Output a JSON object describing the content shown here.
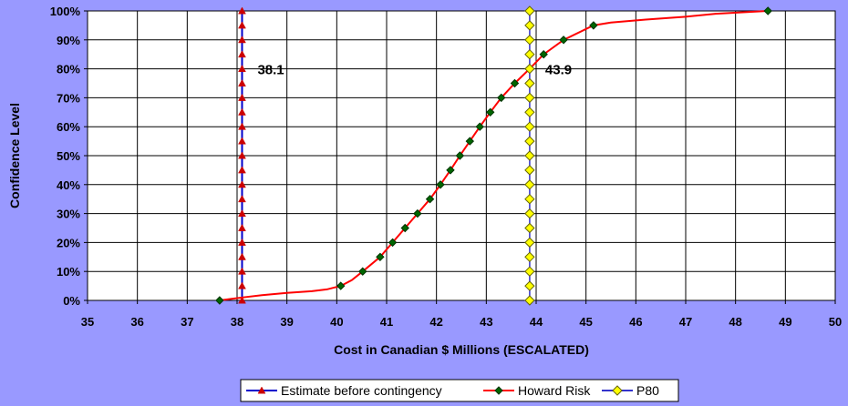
{
  "chart_data": {
    "type": "line",
    "xlabel": "Cost in Canadian $ Millions (ESCALATED)",
    "ylabel": "Confidence Level",
    "xlim": [
      35,
      50
    ],
    "ylim": [
      0,
      100
    ],
    "x_ticks": [
      "35",
      "36",
      "37",
      "38",
      "39",
      "40",
      "41",
      "42",
      "43",
      "44",
      "45",
      "46",
      "47",
      "48",
      "49",
      "50"
    ],
    "y_ticks": [
      "0%",
      "10%",
      "20%",
      "30%",
      "40%",
      "50%",
      "60%",
      "70%",
      "80%",
      "90%",
      "100%"
    ],
    "grid": true,
    "legend_position": "bottom-right",
    "series": [
      {
        "name": "Estimate before contingency",
        "color": "#0000cc",
        "marker_color": "#cc0000",
        "marker": "triangle",
        "x": [
          38.1,
          38.1,
          38.1,
          38.1,
          38.1,
          38.1,
          38.1,
          38.1,
          38.1,
          38.1,
          38.1,
          38.1,
          38.1,
          38.1,
          38.1,
          38.1,
          38.1,
          38.1,
          38.1,
          38.1,
          38.1
        ],
        "y": [
          0,
          5,
          10,
          15,
          20,
          25,
          30,
          35,
          40,
          45,
          50,
          55,
          60,
          65,
          70,
          75,
          80,
          85,
          90,
          95,
          100
        ]
      },
      {
        "name": "Howard Risk",
        "color": "#ff0000",
        "marker_color": "#006600",
        "marker": "diamond",
        "x": [
          37.65,
          40.08,
          40.52,
          40.87,
          41.12,
          41.37,
          41.62,
          41.87,
          42.08,
          42.28,
          42.47,
          42.67,
          42.87,
          43.08,
          43.3,
          43.57,
          43.87,
          44.15,
          44.55,
          45.15,
          48.65
        ],
        "y": [
          0,
          5,
          10,
          15,
          20,
          25,
          30,
          35,
          40,
          45,
          50,
          55,
          60,
          65,
          70,
          75,
          80,
          85,
          90,
          95,
          100
        ],
        "curve_x": [
          37.65,
          38.1,
          38.5,
          39.0,
          39.5,
          39.8,
          40.08,
          40.3,
          40.52,
          40.87,
          41.12,
          41.37,
          41.62,
          41.87,
          42.08,
          42.28,
          42.47,
          42.67,
          42.87,
          43.08,
          43.3,
          43.57,
          43.87,
          44.15,
          44.55,
          45.15,
          45.5,
          46.2,
          47.0,
          47.6,
          48.65
        ],
        "curve_y": [
          0,
          1,
          1.8,
          2.6,
          3.2,
          3.8,
          5,
          7,
          10,
          15,
          20,
          25,
          30,
          35,
          40,
          45,
          50,
          55,
          60,
          65,
          70,
          75,
          80,
          85,
          90,
          95,
          96,
          97,
          98,
          99,
          100
        ]
      },
      {
        "name": "P80",
        "color": "#3333cc",
        "marker_color": "#ffff00",
        "marker": "diamond",
        "x": [
          43.87,
          43.87,
          43.87,
          43.87,
          43.87,
          43.87,
          43.87,
          43.87,
          43.87,
          43.87,
          43.87,
          43.87,
          43.87,
          43.87,
          43.87,
          43.87,
          43.87,
          43.87,
          43.87,
          43.87,
          43.87
        ],
        "y": [
          0,
          5,
          10,
          15,
          20,
          25,
          30,
          35,
          40,
          45,
          50,
          55,
          60,
          65,
          70,
          75,
          80,
          85,
          90,
          95,
          100
        ]
      }
    ],
    "annotations": [
      {
        "text": "38.1",
        "x": 38.1,
        "y": 80,
        "anchor": "right"
      },
      {
        "text": "43.9",
        "x": 43.87,
        "y": 80,
        "anchor": "right"
      }
    ]
  }
}
